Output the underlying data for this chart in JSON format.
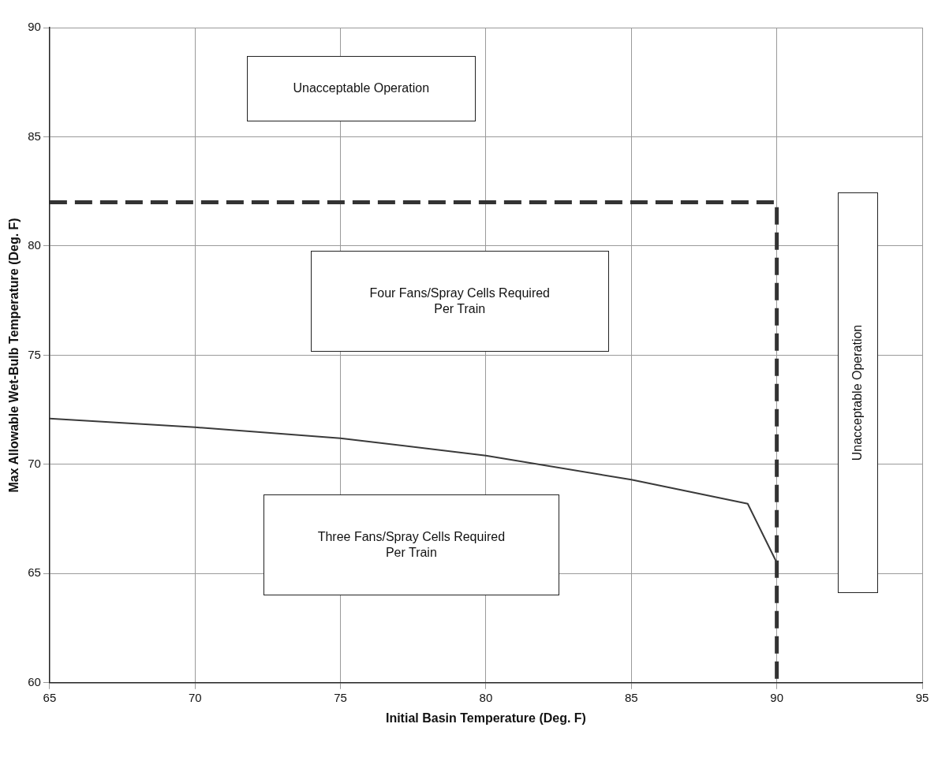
{
  "chart_data": {
    "type": "line",
    "xlabel": "Initial Basin Temperature (Deg. F)",
    "ylabel": "Max Allowable Wet-Bulb Temperature (Deg. F)",
    "xlim": [
      65,
      95
    ],
    "xticks": [
      65,
      70,
      75,
      80,
      85,
      90,
      95
    ],
    "ylim": [
      60,
      90
    ],
    "yticks": [
      60,
      65,
      70,
      75,
      80,
      85,
      90
    ],
    "grid": true,
    "legend": false,
    "marker": "none",
    "series": [
      {
        "color": "#3a3a3a",
        "x": [
          65,
          70,
          75,
          80,
          85,
          89,
          90
        ],
        "values": [
          72.1,
          71.7,
          71.2,
          70.4,
          69.3,
          68.2,
          65.5
        ],
        "line_style": "solid"
      },
      {
        "color": "#333333",
        "x": [
          65,
          90,
          90
        ],
        "values": [
          82,
          82,
          60
        ],
        "line_style": "dashed"
      }
    ],
    "annotations": [
      "Unacceptable Operation",
      "Four Fans/Spray Cells Required\nPer Train",
      "Three Fans/Spray Cells Required\nPer Train",
      "Unacceptable Operation"
    ]
  }
}
